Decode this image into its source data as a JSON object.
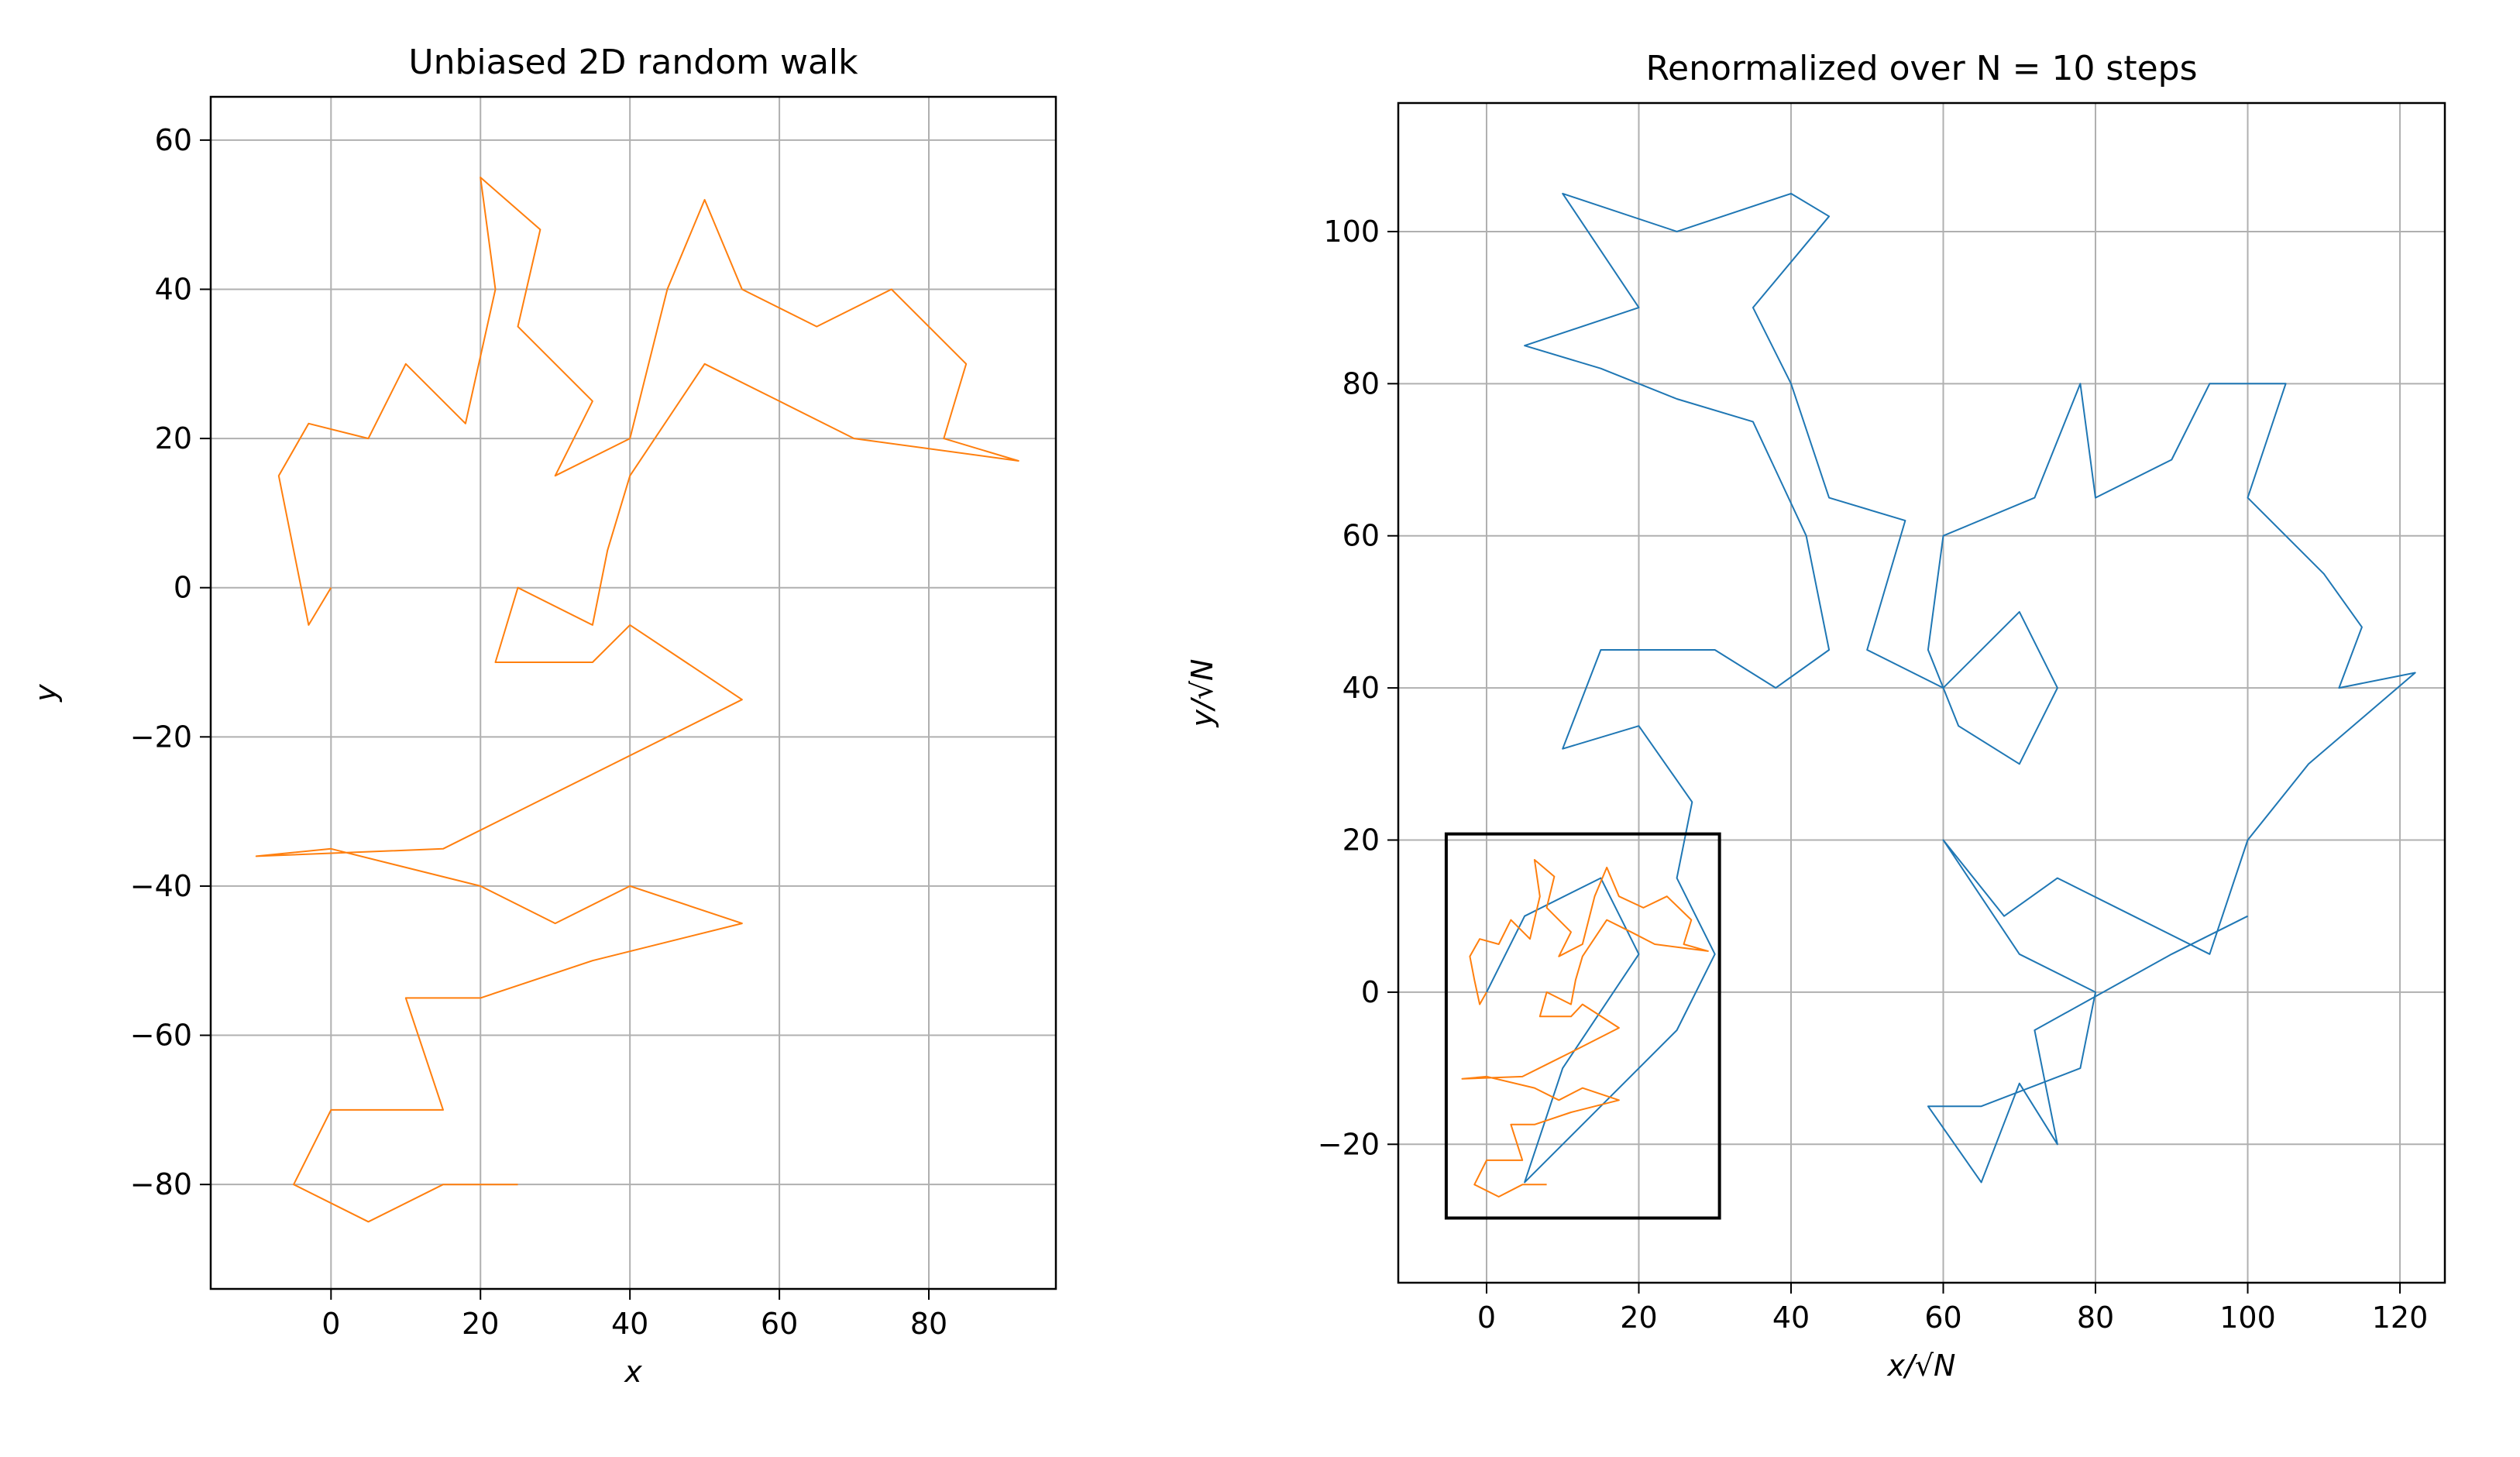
{
  "chart_data": [
    {
      "type": "line",
      "title": "Unbiased 2D random walk",
      "x_label": "x",
      "y_label": "y",
      "xlim": [
        -16.1,
        97
      ],
      "ylim": [
        -94,
        65.8
      ],
      "xticks": [
        0,
        20,
        40,
        60,
        80
      ],
      "yticks": [
        {
          "value": -80,
          "label": "−80"
        },
        {
          "value": -60,
          "label": "−60"
        },
        {
          "value": -40,
          "label": "−40"
        },
        {
          "value": -20,
          "label": "−20"
        },
        0,
        20,
        40,
        60
      ],
      "grid": true,
      "series": [
        {
          "color": "#ff7f0e",
          "x": [
            0,
            -3,
            -5,
            -7,
            -3,
            5,
            10,
            18,
            22,
            20,
            28,
            25,
            35,
            30,
            40,
            45,
            50,
            55,
            65,
            75,
            85,
            82,
            92,
            70,
            60,
            50,
            40,
            37,
            35,
            25,
            22,
            35,
            40,
            55,
            35,
            25,
            15,
            -10,
            0,
            20,
            30,
            40,
            55,
            35,
            20,
            10,
            15,
            0,
            -5,
            5,
            15,
            25
          ],
          "y": [
            0,
            -5,
            5,
            15,
            22,
            20,
            30,
            22,
            40,
            55,
            48,
            35,
            25,
            15,
            20,
            40,
            52,
            40,
            35,
            40,
            30,
            20,
            17,
            20,
            25,
            30,
            15,
            5,
            -5,
            0,
            -10,
            -10,
            -5,
            -15,
            -25,
            -30,
            -35,
            -36,
            -35,
            -40,
            -45,
            -40,
            -45,
            -50,
            -55,
            -55,
            -70,
            -70,
            -80,
            -85,
            -80,
            -80
          ]
        }
      ]
    },
    {
      "type": "line",
      "title": "Renormalized over N = 10 steps",
      "x_label": "x/√N",
      "y_label": "y/√N",
      "xlim": [
        -11.6,
        125.9
      ],
      "ylim": [
        -38.2,
        116.9
      ],
      "xticks": [
        0,
        20,
        40,
        60,
        80,
        100,
        120
      ],
      "yticks": [
        {
          "value": -20,
          "label": "−20"
        },
        0,
        20,
        40,
        60,
        80,
        100
      ],
      "grid": true,
      "series": [
        {
          "color": "#1f77b4",
          "x": [
            0,
            5,
            15,
            20,
            10,
            5,
            15,
            25,
            30,
            25,
            27,
            20,
            10,
            15,
            30,
            38,
            45,
            42,
            35,
            25,
            15,
            5,
            20,
            10,
            25,
            40,
            45,
            35,
            40,
            45,
            55,
            50,
            60,
            70,
            75,
            70,
            62,
            58,
            60,
            72,
            78,
            80,
            90,
            95,
            105,
            100,
            110,
            115,
            112,
            122,
            108,
            100,
            95,
            85,
            75,
            68,
            60,
            70,
            80,
            78,
            65,
            58,
            65,
            70,
            75,
            72,
            90,
            100
          ],
          "y": [
            0,
            10,
            15,
            5,
            -10,
            -25,
            -15,
            -5,
            5,
            15,
            25,
            35,
            32,
            45,
            45,
            40,
            45,
            60,
            75,
            78,
            82,
            85,
            90,
            105,
            100,
            105,
            102,
            90,
            80,
            65,
            62,
            45,
            40,
            50,
            40,
            30,
            35,
            45,
            60,
            65,
            80,
            65,
            70,
            80,
            80,
            65,
            55,
            48,
            40,
            42,
            30,
            20,
            5,
            10,
            15,
            10,
            20,
            5,
            0,
            -10,
            -15,
            -15,
            -25,
            -12,
            -20,
            -5,
            5,
            10
          ]
        },
        {
          "color": "#ff7f0e",
          "x": [
            0,
            -0.9,
            -1.6,
            -2.2,
            -0.9,
            1.6,
            3.2,
            5.7,
            7.0,
            6.3,
            8.9,
            7.9,
            11.1,
            9.5,
            12.6,
            14.2,
            15.8,
            17.4,
            20.6,
            23.7,
            26.9,
            25.9,
            29.1,
            22.1,
            19.0,
            15.8,
            12.6,
            11.7,
            11.1,
            7.9,
            7.0,
            11.1,
            12.6,
            17.4,
            11.1,
            7.9,
            4.7,
            -3.2,
            0,
            6.3,
            9.5,
            12.6,
            17.4,
            11.1,
            6.3,
            3.2,
            4.7,
            0,
            -1.6,
            1.6,
            4.7,
            7.9
          ],
          "y": [
            0,
            -1.6,
            1.6,
            4.7,
            7.0,
            6.3,
            9.5,
            7.0,
            12.6,
            17.4,
            15.2,
            11.1,
            7.9,
            4.7,
            6.3,
            12.6,
            16.4,
            12.6,
            11.1,
            12.6,
            9.5,
            6.3,
            5.4,
            6.3,
            7.9,
            9.5,
            4.7,
            1.6,
            -1.6,
            0,
            -3.2,
            -3.2,
            -1.6,
            -4.7,
            -7.9,
            -9.5,
            -11.1,
            -11.4,
            -11.1,
            -12.6,
            -14.2,
            -12.6,
            -14.2,
            -15.8,
            -17.4,
            -17.4,
            -22.1,
            -22.1,
            -25.3,
            -26.9,
            -25.3,
            -25.3
          ]
        }
      ],
      "box": {
        "x": [
          -5.3,
          30.6
        ],
        "y": [
          -29.7,
          20.8
        ],
        "color": "#000000"
      }
    }
  ]
}
